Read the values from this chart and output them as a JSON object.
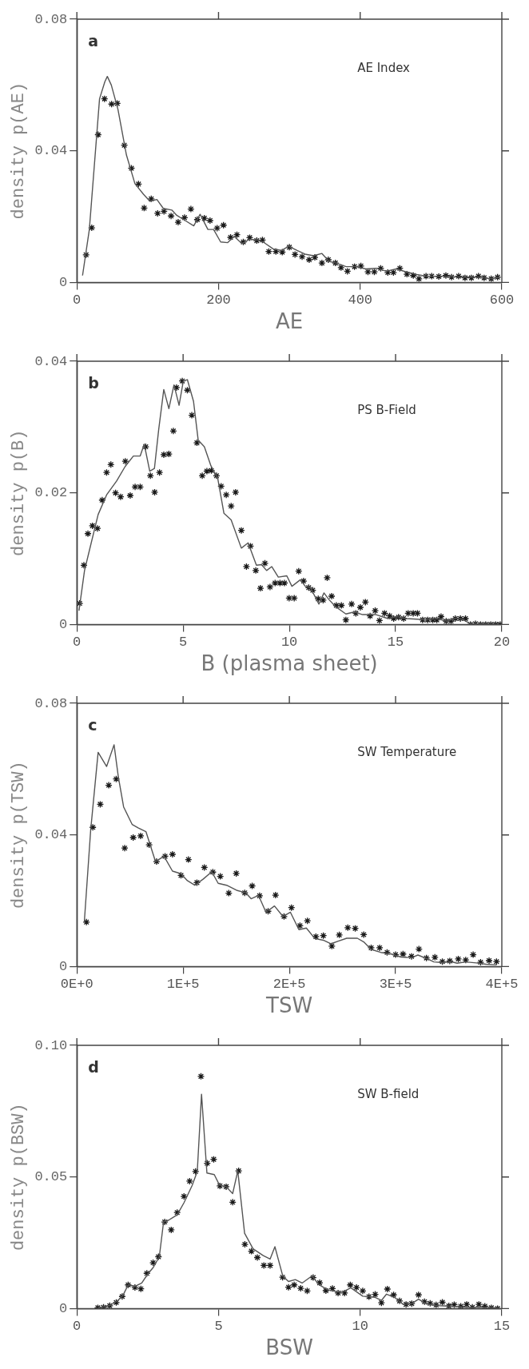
{
  "chart_data": [
    {
      "type": "line",
      "xlabel": "AE",
      "ylabel": "density p(AE)",
      "annotations": [
        "a",
        "AE Index"
      ],
      "xlim": [
        0,
        600
      ],
      "ylim": [
        0,
        0.08
      ],
      "xticks": [
        0,
        200,
        400,
        600
      ],
      "yticks": [
        0,
        0.04,
        0.08
      ],
      "grid": false,
      "legend": false,
      "series": [
        {
          "type": "line",
          "color": "#555555",
          "marker": "none",
          "x": [
            8,
            17.6,
            32,
            39.5,
            43,
            48.6,
            58,
            70,
            82,
            94,
            103,
            113,
            122,
            134,
            141,
            153,
            165,
            174,
            185,
            193,
            203,
            213,
            222,
            233,
            244,
            256,
            265,
            277,
            289,
            299,
            311,
            322,
            334,
            346,
            356,
            366,
            380,
            394,
            408,
            423,
            437,
            451,
            465,
            480,
            494,
            518,
            542,
            566,
            585,
            597
          ],
          "values": [
            0.0021,
            0.0161,
            0.0558,
            0.061,
            0.0626,
            0.06,
            0.0526,
            0.0387,
            0.03,
            0.0268,
            0.0247,
            0.0252,
            0.0225,
            0.022,
            0.0204,
            0.0188,
            0.0172,
            0.0207,
            0.0161,
            0.0161,
            0.0123,
            0.0121,
            0.014,
            0.0118,
            0.0131,
            0.0129,
            0.012,
            0.0102,
            0.0097,
            0.011,
            0.0097,
            0.0086,
            0.0081,
            0.0088,
            0.0064,
            0.0059,
            0.0048,
            0.0048,
            0.0041,
            0.0043,
            0.0034,
            0.0041,
            0.0032,
            0.0024,
            0.0019,
            0.0019,
            0.0016,
            0.0016,
            0.0011,
            0.0016
          ]
        },
        {
          "type": "scatter",
          "color": "#1a1a1a",
          "marker": "cross",
          "x": [
            13,
            21,
            30,
            39,
            49,
            57,
            67,
            77,
            87,
            95,
            105,
            114,
            123,
            133,
            143,
            152,
            161,
            170,
            180,
            188,
            198,
            207,
            217,
            226,
            235,
            244,
            254,
            262,
            271,
            281,
            290,
            300,
            308,
            318,
            328,
            336,
            346,
            355,
            365,
            373,
            382,
            392,
            401,
            411,
            420,
            429,
            439,
            447,
            456,
            466,
            475,
            483,
            493,
            501,
            511,
            521,
            529,
            539,
            548,
            557,
            567,
            575,
            585,
            594
          ],
          "values": [
            0.0084,
            0.0166,
            0.0449,
            0.0558,
            0.0542,
            0.0544,
            0.0417,
            0.0347,
            0.0299,
            0.0226,
            0.0254,
            0.021,
            0.0216,
            0.0202,
            0.0183,
            0.0197,
            0.0223,
            0.0191,
            0.0195,
            0.0188,
            0.0165,
            0.0174,
            0.0137,
            0.0145,
            0.0123,
            0.0136,
            0.0127,
            0.0129,
            0.0094,
            0.0094,
            0.0092,
            0.0107,
            0.0085,
            0.0078,
            0.0069,
            0.0076,
            0.0059,
            0.0069,
            0.0059,
            0.0045,
            0.0034,
            0.0048,
            0.005,
            0.0032,
            0.0032,
            0.0043,
            0.003,
            0.003,
            0.0043,
            0.0025,
            0.0021,
            0.0011,
            0.0019,
            0.0019,
            0.0018,
            0.0021,
            0.0016,
            0.0019,
            0.0014,
            0.0014,
            0.0019,
            0.0014,
            0.0011,
            0.0016
          ]
        }
      ]
    },
    {
      "type": "line",
      "xlabel": "B (plasma sheet)",
      "ylabel": "density p(B)",
      "annotations": [
        "b",
        "PS B-Field"
      ],
      "xlim": [
        0,
        20
      ],
      "ylim": [
        0,
        0.04
      ],
      "xticks": [
        0,
        5,
        10,
        15,
        20
      ],
      "yticks": [
        0,
        0.02,
        0.04
      ],
      "grid": false,
      "legend": false,
      "series": [
        {
          "type": "line",
          "color": "#555555",
          "marker": "none",
          "x": [
            0.1,
            0.36,
            0.6,
            1.0,
            1.4,
            1.87,
            2.27,
            2.66,
            2.98,
            3.17,
            3.43,
            3.65,
            3.85,
            4.09,
            4.33,
            4.57,
            4.81,
            5.01,
            5.2,
            5.49,
            5.71,
            6.0,
            6.31,
            6.63,
            6.92,
            7.26,
            7.74,
            8.06,
            8.45,
            8.69,
            8.93,
            9.17,
            9.48,
            9.88,
            10.12,
            10.52,
            10.75,
            10.99,
            11.39,
            11.63,
            11.86,
            12.18,
            12.66,
            13.05,
            13.45,
            14.08,
            14.64,
            15.04,
            15.51,
            15.99,
            16.46,
            16.94,
            17.41,
            17.89,
            18.21,
            18.52,
            19.16,
            19.87
          ],
          "values": [
            0.0021,
            0.0082,
            0.0114,
            0.0167,
            0.0197,
            0.0218,
            0.024,
            0.0256,
            0.0256,
            0.0274,
            0.0233,
            0.0237,
            0.0296,
            0.0357,
            0.0328,
            0.0364,
            0.0333,
            0.037,
            0.0372,
            0.0339,
            0.028,
            0.027,
            0.0241,
            0.0222,
            0.0169,
            0.0159,
            0.0116,
            0.0124,
            0.009,
            0.0091,
            0.0082,
            0.0088,
            0.0072,
            0.0074,
            0.0058,
            0.0068,
            0.0058,
            0.0056,
            0.0031,
            0.0048,
            0.0038,
            0.0027,
            0.0016,
            0.0019,
            0.0015,
            0.0015,
            0.0009,
            0.0012,
            0.0009,
            0.0008,
            0.0007,
            0.0009,
            0.0005,
            0.001,
            0.0007,
            0.0001,
            0.0001,
            0
          ]
        },
        {
          "type": "scatter",
          "color": "#1a1a1a",
          "marker": "cross",
          "x": [
            0.13,
            0.33,
            0.52,
            0.73,
            0.97,
            1.19,
            1.4,
            1.6,
            1.82,
            2.06,
            2.28,
            2.51,
            2.74,
            2.98,
            3.24,
            3.46,
            3.66,
            3.89,
            4.09,
            4.33,
            4.54,
            4.69,
            4.96,
            5.2,
            5.41,
            5.65,
            5.9,
            6.12,
            6.33,
            6.57,
            6.79,
            7.03,
            7.26,
            7.47,
            7.74,
            7.98,
            8.17,
            8.42,
            8.64,
            8.85,
            9.09,
            9.33,
            9.56,
            9.77,
            9.99,
            10.23,
            10.44,
            10.67,
            10.91,
            11.1,
            11.36,
            11.59,
            11.78,
            11.99,
            12.21,
            12.45,
            12.66,
            12.93,
            13.13,
            13.34,
            13.58,
            13.8,
            14.04,
            14.24,
            14.48,
            14.72,
            14.91,
            15.14,
            15.38,
            15.59,
            15.83,
            16.03,
            16.27,
            16.51,
            16.75,
            16.94,
            17.14,
            17.38,
            17.61,
            17.81,
            18.05,
            18.29,
            18.52,
            18.76,
            19.0,
            19.24,
            19.48,
            19.71,
            19.92
          ],
          "values": [
            0.0032,
            0.009,
            0.0138,
            0.015,
            0.0146,
            0.0189,
            0.0231,
            0.0243,
            0.02,
            0.0194,
            0.0248,
            0.0196,
            0.0209,
            0.0209,
            0.027,
            0.0226,
            0.0201,
            0.0231,
            0.0258,
            0.0259,
            0.0294,
            0.036,
            0.037,
            0.0356,
            0.0318,
            0.0276,
            0.0226,
            0.0233,
            0.0234,
            0.0226,
            0.021,
            0.0197,
            0.018,
            0.0201,
            0.0143,
            0.0088,
            0.0119,
            0.0082,
            0.0055,
            0.0093,
            0.0057,
            0.0063,
            0.0063,
            0.0063,
            0.004,
            0.004,
            0.0081,
            0.0066,
            0.0056,
            0.0052,
            0.0039,
            0.0037,
            0.0071,
            0.0043,
            0.0029,
            0.0029,
            0.0007,
            0.0031,
            0.0017,
            0.0026,
            0.0034,
            0.0013,
            0.0021,
            0.0006,
            0.0017,
            0.0013,
            0.0009,
            0.0011,
            0.0009,
            0.0017,
            0.0017,
            0.0017,
            0.0007,
            0.0007,
            0.0007,
            0.0007,
            0.0012,
            0.0005,
            0.0005,
            0.0009,
            0.0009,
            0.0009,
            0,
            0.0001,
            0,
            0,
            0,
            0,
            0
          ]
        }
      ]
    },
    {
      "type": "line",
      "xlabel": "TSW",
      "ylabel": "density p(TSW)",
      "annotations": [
        "c",
        "SW Temperature"
      ],
      "xlim": [
        0,
        400000
      ],
      "ylim": [
        0,
        0.08
      ],
      "xticks": [
        {
          "value": 0,
          "label": "0E+0"
        },
        {
          "value": 100000,
          "label": "1E+5"
        },
        {
          "value": 200000,
          "label": "2E+5"
        },
        {
          "value": 300000,
          "label": "3E+5"
        },
        {
          "value": 400000,
          "label": "4E+5"
        }
      ],
      "yticks": [
        0,
        0.04,
        0.08
      ],
      "grid": false,
      "legend": false,
      "series": [
        {
          "type": "line",
          "color": "#555555",
          "marker": "none",
          "x": [
            7000,
            13000,
            20000,
            28000,
            35000,
            39000,
            44000,
            52000,
            58000,
            65000,
            74000,
            82000,
            90000,
            98000,
            104000,
            111000,
            119000,
            127000,
            133000,
            141000,
            151000,
            159000,
            164000,
            171000,
            178000,
            186000,
            194000,
            201000,
            209000,
            216000,
            224000,
            232000,
            239000,
            246000,
            254000,
            264000,
            270000,
            277000,
            286000,
            296000,
            305000,
            315000,
            321000,
            331000,
            336000,
            344000,
            352000,
            358000,
            366000,
            376000,
            385000,
            395000
          ],
          "values": [
            0.0135,
            0.0415,
            0.0651,
            0.0608,
            0.0674,
            0.0577,
            0.0485,
            0.0432,
            0.0421,
            0.041,
            0.0319,
            0.0335,
            0.029,
            0.0282,
            0.0261,
            0.0247,
            0.0266,
            0.0288,
            0.0253,
            0.0247,
            0.0231,
            0.0224,
            0.0206,
            0.0216,
            0.0165,
            0.0184,
            0.0152,
            0.0165,
            0.0112,
            0.0117,
            0.0085,
            0.008,
            0.0069,
            0.0077,
            0.0086,
            0.0086,
            0.0075,
            0.0052,
            0.0043,
            0.0038,
            0.0029,
            0.0027,
            0.0035,
            0.0022,
            0.0014,
            0.0012,
            0.0015,
            0.001,
            0.0014,
            0.0011,
            0.0007,
            0.0005
          ]
        },
        {
          "type": "scatter",
          "color": "#1a1a1a",
          "marker": "cross",
          "x": [
            9000,
            15000,
            22000,
            30000,
            37000,
            45000,
            53000,
            60000,
            68000,
            75000,
            83000,
            90000,
            98000,
            105000,
            113000,
            120000,
            128000,
            135000,
            143000,
            150000,
            158000,
            165000,
            172000,
            180000,
            187000,
            195000,
            202000,
            210000,
            217000,
            225000,
            232000,
            240000,
            247000,
            255000,
            262000,
            270000,
            277000,
            285000,
            292000,
            300000,
            307000,
            315000,
            322000,
            329000,
            337000,
            344000,
            351000,
            359000,
            366000,
            373000,
            380000,
            388000,
            395000
          ],
          "values": [
            0.0135,
            0.0423,
            0.0493,
            0.0551,
            0.057,
            0.036,
            0.0392,
            0.0397,
            0.037,
            0.0319,
            0.0335,
            0.0341,
            0.0277,
            0.0325,
            0.0255,
            0.0301,
            0.0287,
            0.0274,
            0.0223,
            0.0283,
            0.0224,
            0.0245,
            0.0215,
            0.0168,
            0.0217,
            0.0152,
            0.0179,
            0.0124,
            0.0139,
            0.0091,
            0.0094,
            0.0062,
            0.0096,
            0.0118,
            0.0116,
            0.0097,
            0.0057,
            0.0057,
            0.0043,
            0.0036,
            0.0038,
            0.0031,
            0.0053,
            0.0026,
            0.0028,
            0.0015,
            0.0017,
            0.0023,
            0.002,
            0.0036,
            0.0013,
            0.0018,
            0.0015
          ]
        }
      ]
    },
    {
      "type": "line",
      "xlabel": "BSW",
      "ylabel": "density p(BSW)",
      "annotations": [
        "d",
        "SW B-field"
      ],
      "xlim": [
        0,
        15
      ],
      "ylim": [
        0,
        0.1
      ],
      "xticks": [
        0,
        5,
        10,
        15
      ],
      "yticks": [
        0,
        0.05,
        {
          "value": 0.1,
          "label": "0.10"
        }
      ],
      "grid": false,
      "legend": false,
      "series": [
        {
          "type": "line",
          "color": "#555555",
          "marker": "none",
          "x": [
            0.74,
            1.16,
            1.45,
            1.63,
            1.81,
            2.05,
            2.29,
            2.5,
            2.7,
            2.91,
            3.06,
            3.24,
            3.54,
            3.78,
            4.07,
            4.25,
            4.4,
            4.59,
            4.85,
            5.03,
            5.27,
            5.5,
            5.68,
            5.92,
            6.22,
            6.58,
            6.82,
            6.99,
            7.27,
            7.47,
            7.71,
            7.95,
            8.3,
            8.54,
            8.84,
            9.2,
            9.44,
            9.67,
            10.09,
            10.51,
            10.75,
            10.93,
            11.22,
            11.52,
            11.82,
            12.06,
            12.35,
            12.77,
            13.25,
            13.73,
            14.2,
            14.68,
            14.92
          ],
          "values": [
            0.0003,
            0.0011,
            0.0031,
            0.0051,
            0.009,
            0.0084,
            0.0097,
            0.0131,
            0.0157,
            0.0197,
            0.0329,
            0.0336,
            0.0356,
            0.0402,
            0.0468,
            0.0521,
            0.0814,
            0.0515,
            0.0509,
            0.047,
            0.0463,
            0.0437,
            0.0523,
            0.0286,
            0.0227,
            0.0201,
            0.0188,
            0.0235,
            0.0123,
            0.0103,
            0.011,
            0.0097,
            0.0124,
            0.0091,
            0.0072,
            0.0063,
            0.0066,
            0.0079,
            0.0047,
            0.0043,
            0.0031,
            0.0055,
            0.0042,
            0.0016,
            0.0019,
            0.0036,
            0.0017,
            0.0011,
            0.0009,
            0.0005,
            0.0005,
            0.0004,
            0.0001
          ]
        },
        {
          "type": "scatter",
          "color": "#1a1a1a",
          "marker": "cross",
          "x": [
            0.74,
            0.94,
            1.16,
            1.39,
            1.6,
            1.81,
            2.05,
            2.26,
            2.47,
            2.69,
            2.88,
            3.1,
            3.33,
            3.54,
            3.78,
            3.98,
            4.19,
            4.38,
            4.6,
            4.83,
            5.05,
            5.27,
            5.5,
            5.71,
            5.93,
            6.16,
            6.37,
            6.6,
            6.82,
            7.26,
            7.47,
            7.67,
            7.9,
            8.13,
            8.34,
            8.57,
            8.79,
            9.02,
            9.22,
            9.45,
            9.65,
            9.87,
            10.09,
            10.31,
            10.53,
            10.75,
            10.96,
            11.18,
            11.39,
            11.62,
            11.82,
            12.06,
            12.27,
            12.47,
            12.68,
            12.9,
            13.13,
            13.32,
            13.55,
            13.76,
            13.96,
            14.19,
            14.4,
            14.63,
            14.85
          ],
          "values": [
            0.0003,
            0.0005,
            0.0011,
            0.0023,
            0.0046,
            0.009,
            0.008,
            0.0075,
            0.0134,
            0.0174,
            0.0197,
            0.0329,
            0.0299,
            0.0365,
            0.0426,
            0.0484,
            0.0521,
            0.0882,
            0.0552,
            0.0567,
            0.0466,
            0.0463,
            0.0404,
            0.0523,
            0.0244,
            0.0218,
            0.0194,
            0.0164,
            0.0164,
            0.0119,
            0.0081,
            0.009,
            0.0077,
            0.0067,
            0.0118,
            0.0098,
            0.0068,
            0.0076,
            0.0059,
            0.0059,
            0.009,
            0.008,
            0.0067,
            0.0045,
            0.0054,
            0.0022,
            0.0074,
            0.0052,
            0.0029,
            0.0016,
            0.0019,
            0.0052,
            0.0026,
            0.002,
            0.0014,
            0.0024,
            0.001,
            0.0015,
            0.0009,
            0.0016,
            0.0005,
            0.0016,
            0.0009,
            0.0003,
            0
          ]
        }
      ]
    }
  ]
}
